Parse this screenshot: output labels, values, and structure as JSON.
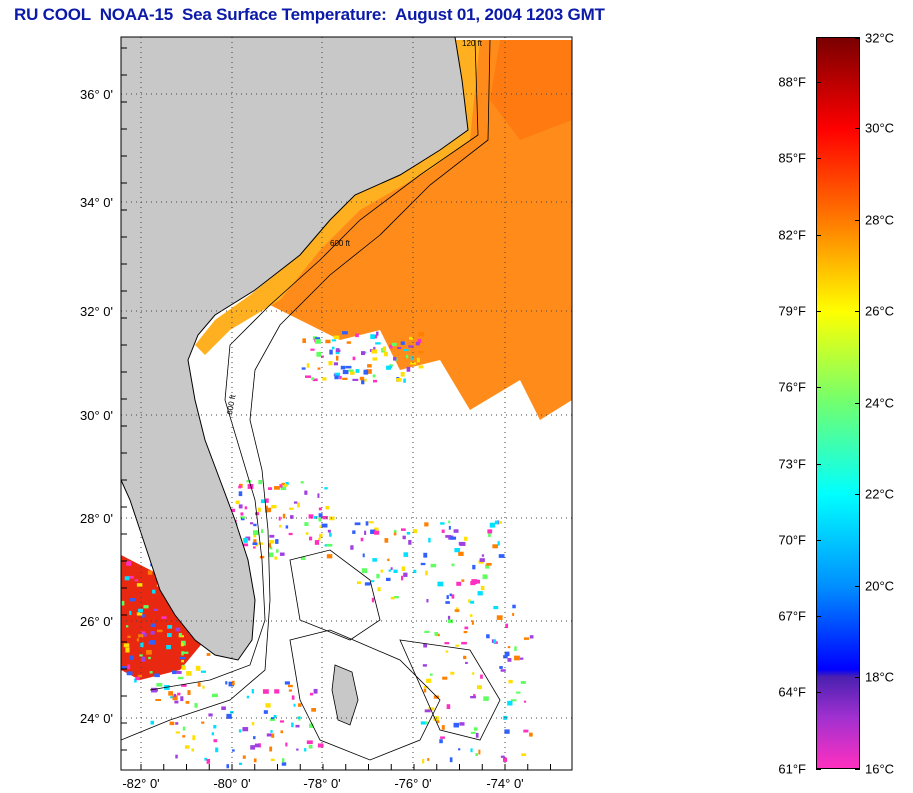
{
  "title": "RU COOL  NOAA-15  Sea Surface Temperature:  August 01, 2004 1203 GMT",
  "map": {
    "lat_labels": [
      "36° 0'",
      "34° 0'",
      "32° 0'",
      "30° 0'",
      "28° 0'",
      "26° 0'",
      "24° 0'"
    ],
    "lon_labels": [
      "-82° 0'",
      "-80° 0'",
      "-78° 0'",
      "-76° 0'",
      "-74° 0'"
    ],
    "contour_labels": [
      "120 ft",
      "600 ft"
    ]
  },
  "colorbar": {
    "fahrenheit": [
      "88°F",
      "85°F",
      "82°F",
      "79°F",
      "76°F",
      "73°F",
      "70°F",
      "67°F",
      "64°F",
      "61°F"
    ],
    "celsius": [
      "32°C",
      "30°C",
      "28°C",
      "26°C",
      "24°C",
      "22°C",
      "20°C",
      "18°C",
      "16°C"
    ],
    "range_c": [
      16,
      32
    ]
  },
  "colors": {
    "title": "#0b1aa8",
    "land": "#c8c8c8",
    "ocean_nodata": "#ffffff"
  }
}
